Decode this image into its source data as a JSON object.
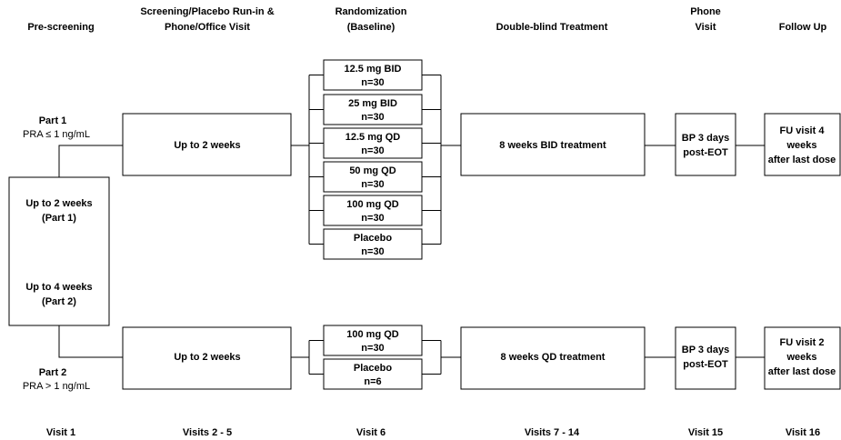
{
  "columns": [
    {
      "header": [
        "Pre-screening"
      ],
      "visit": "Visit 1"
    },
    {
      "header": [
        "Screening/Placebo Run-in &",
        "Phone/Office Visit"
      ],
      "visit": "Visits 2 - 5"
    },
    {
      "header": [
        "Randomization",
        "(Baseline)"
      ],
      "visit": "Visit 6"
    },
    {
      "header": [
        "Double-blind Treatment"
      ],
      "visit": "Visits 7 - 14"
    },
    {
      "header": [
        "Phone",
        "Visit"
      ],
      "visit": "Visit 15"
    },
    {
      "header": [
        "Follow Up"
      ],
      "visit": "Visit 16"
    }
  ],
  "pre_screening": [
    [
      "Up to 2 weeks",
      "(Part 1)"
    ],
    [
      "Up to 4 weeks",
      "(Part 2)"
    ]
  ],
  "parts": [
    {
      "label": "Part 1",
      "criterion": "PRA ≤ 1 ng/mL",
      "screening": "Up to 2 weeks",
      "arms": [
        {
          "dose": "12.5 mg BID",
          "n": "n=30"
        },
        {
          "dose": "25 mg BID",
          "n": "n=30"
        },
        {
          "dose": "12.5 mg QD",
          "n": "n=30"
        },
        {
          "dose": "50 mg QD",
          "n": "n=30"
        },
        {
          "dose": "100 mg QD",
          "n": "n=30"
        },
        {
          "dose": "Placebo",
          "n": "n=30"
        }
      ],
      "treatment": "8 weeks BID treatment",
      "phone": [
        "BP 3 days",
        "post-EOT"
      ],
      "follow_up": [
        "FU visit 4",
        "weeks",
        "after last dose"
      ]
    },
    {
      "label": "Part 2",
      "criterion": "PRA > 1 ng/mL",
      "screening": "Up to 2 weeks",
      "arms": [
        {
          "dose": "100 mg QD",
          "n": "n=30"
        },
        {
          "dose": "Placebo",
          "n": "n=6"
        }
      ],
      "treatment": "8 weeks QD treatment",
      "phone": [
        "BP 3 days",
        "post-EOT"
      ],
      "follow_up": [
        "FU visit 2",
        "weeks",
        "after last dose"
      ]
    }
  ]
}
